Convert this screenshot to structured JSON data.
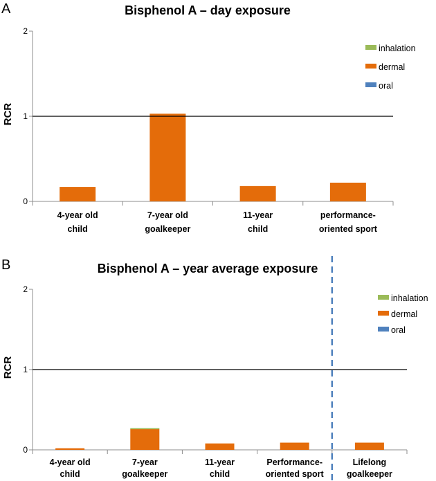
{
  "chart_data": [
    {
      "panel": "A",
      "type": "bar",
      "title": "Bisphenol A – day exposure",
      "ylabel": "RCR",
      "xlabel": "",
      "ylim": [
        0,
        2
      ],
      "yticks": [
        "0",
        "1",
        "2"
      ],
      "reference_line": 1,
      "categories": [
        [
          "4-year old",
          "child"
        ],
        [
          "7-year old",
          "goalkeeper"
        ],
        [
          "11-year",
          "child"
        ],
        [
          "performance-",
          "oriented sport"
        ]
      ],
      "series": [
        {
          "name": "oral",
          "color": "#4f81bd",
          "values": [
            0,
            0,
            0,
            0
          ]
        },
        {
          "name": "dermal",
          "color": "#e46c0a",
          "values": [
            0.17,
            1.03,
            0.18,
            0.22
          ]
        },
        {
          "name": "inhalation",
          "color": "#9bbb59",
          "values": [
            0,
            0,
            0,
            0
          ]
        }
      ],
      "legend": [
        "inhalation",
        "dermal",
        "oral"
      ],
      "legend_position": "top-right"
    },
    {
      "panel": "B",
      "type": "bar",
      "title": "Bisphenol A – year average exposure",
      "ylabel": "RCR",
      "xlabel": "",
      "ylim": [
        0,
        2
      ],
      "yticks": [
        "0",
        "1",
        "2"
      ],
      "reference_line": 1,
      "divider_after_category": 3,
      "categories": [
        [
          "4-year old",
          "child"
        ],
        [
          "7-year",
          "goalkeeper"
        ],
        [
          "11-year",
          "child"
        ],
        [
          "Performance-",
          "oriented sport"
        ],
        [
          "Lifelong",
          "goalkeeper"
        ]
      ],
      "series": [
        {
          "name": "oral",
          "color": "#4f81bd",
          "values": [
            0,
            0,
            0,
            0,
            0
          ]
        },
        {
          "name": "dermal",
          "color": "#e46c0a",
          "values": [
            0.02,
            0.26,
            0.08,
            0.09,
            0.09
          ]
        },
        {
          "name": "inhalation",
          "color": "#9bbb59",
          "values": [
            0,
            0.01,
            0,
            0,
            0
          ]
        }
      ],
      "legend": [
        "inhalation",
        "dermal",
        "oral"
      ],
      "legend_position": "top-right"
    }
  ]
}
